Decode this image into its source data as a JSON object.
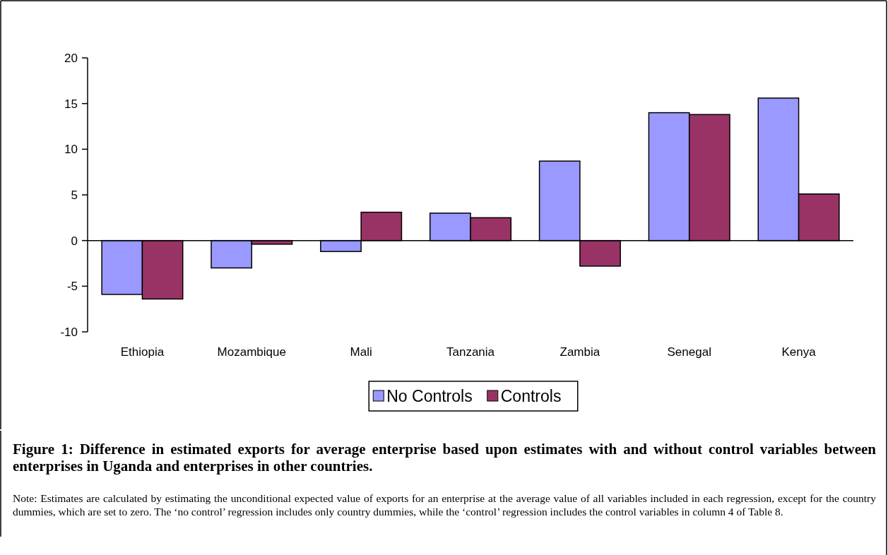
{
  "chart_data": {
    "type": "bar",
    "title": "Figure 1:  Difference in estimated exports for average enterprise based upon estimates with and without control variables between enterprises in Uganda and enterprises in other countries.",
    "annotations": [
      "Note: Estimates are calculated by estimating the unconditional expected value of exports for an enterprise at the average value of all variables included in each regression, except for the country dummies, which are set to zero.  The ‘no control’ regression includes only country dummies, while the ‘control’ regression includes the control variables in column 4 of Table 8."
    ],
    "categories": [
      "Ethiopia",
      "Mozambique",
      "Mali",
      "Tanzania",
      "Zambia",
      "Senegal",
      "Kenya"
    ],
    "series": [
      {
        "name": "No Controls",
        "color": "#9999ff",
        "values": [
          -5.9,
          -3.0,
          -1.2,
          3.0,
          8.7,
          14.0,
          15.6
        ]
      },
      {
        "name": "Controls",
        "color": "#993366",
        "values": [
          -6.4,
          -0.4,
          3.1,
          2.5,
          -2.8,
          13.8,
          5.1
        ]
      }
    ],
    "ylim": [
      -10,
      20
    ],
    "yticks": [
      -10,
      -5,
      0,
      5,
      10,
      15,
      20
    ],
    "legend": "bottom"
  }
}
